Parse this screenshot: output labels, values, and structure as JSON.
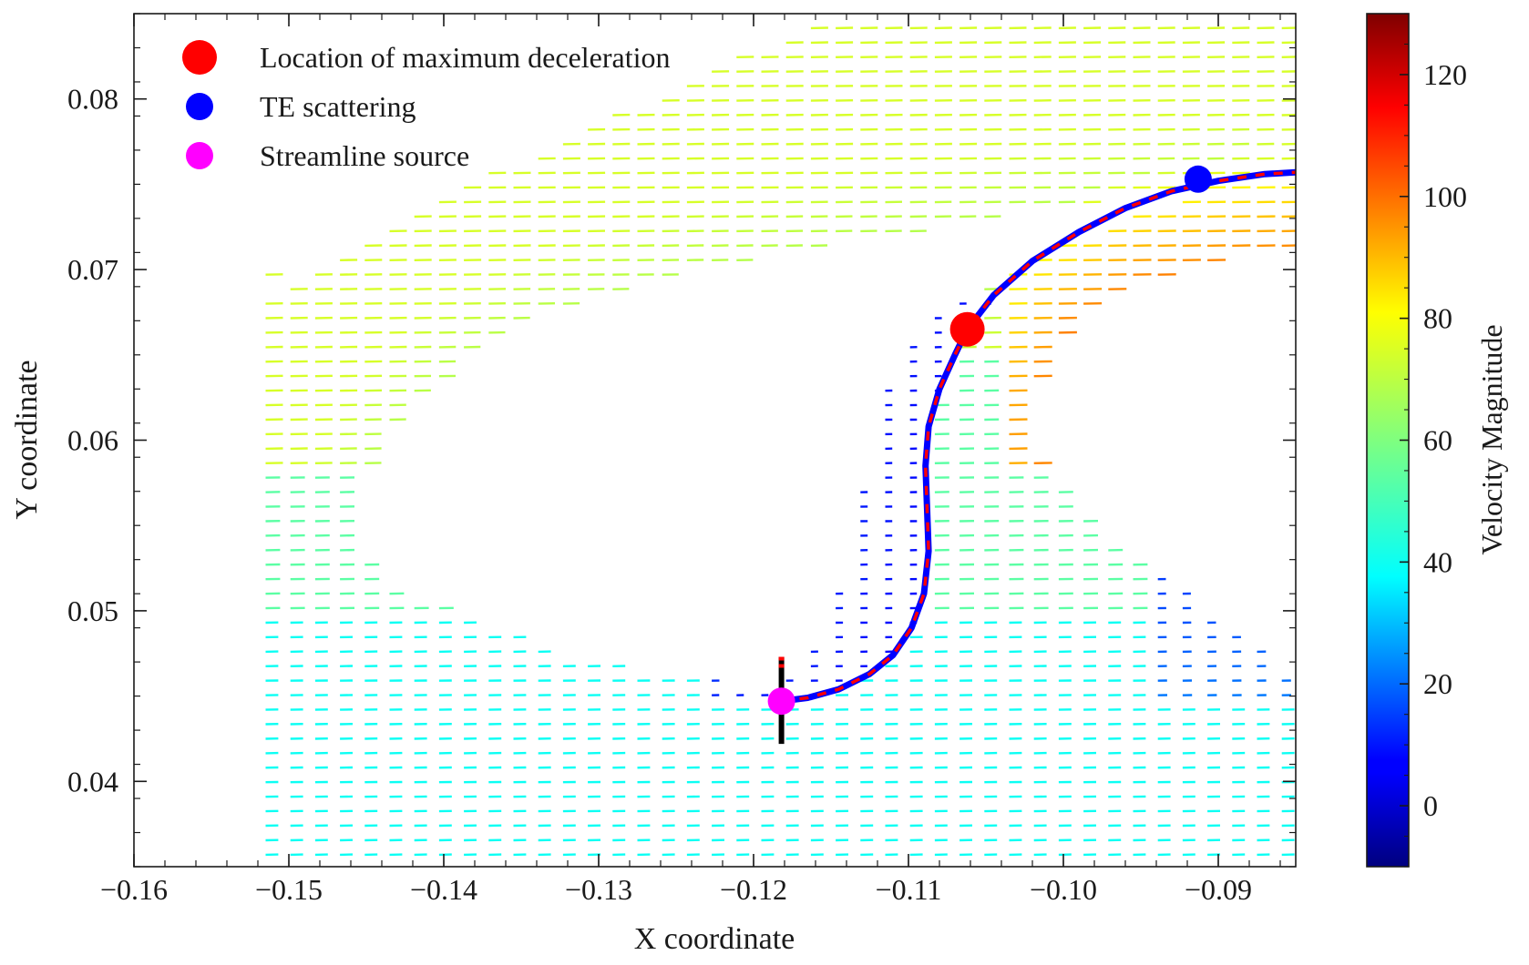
{
  "chart_data": {
    "type": "scatter",
    "plot_kind": "quiver velocity field with streamline",
    "xlabel": "X coordinate",
    "ylabel": "Y coordinate",
    "xlim": [
      -0.16,
      -0.085
    ],
    "ylim": [
      0.035,
      0.085
    ],
    "x_ticks": [
      -0.16,
      -0.15,
      -0.14,
      -0.13,
      -0.12,
      -0.11,
      -0.1,
      -0.09
    ],
    "x_tick_labels": [
      "−0.16",
      "−0.15",
      "−0.14",
      "−0.13",
      "−0.12",
      "−0.11",
      "−0.10",
      "−0.09"
    ],
    "y_ticks": [
      0.04,
      0.05,
      0.06,
      0.07,
      0.08
    ],
    "y_tick_labels": [
      "0.04",
      "0.05",
      "0.06",
      "0.07",
      "0.08"
    ],
    "grid": false,
    "legend_position": "top-left",
    "colorbar": {
      "label": "Velocity Magnitude",
      "colormap": "jet",
      "range": [
        -10,
        130
      ],
      "ticks": [
        0,
        20,
        40,
        60,
        80,
        100,
        120
      ],
      "tick_labels": [
        "0",
        "20",
        "40",
        "60",
        "80",
        "100",
        "120"
      ]
    },
    "series": [
      {
        "name": "Location of maximum deceleration",
        "color": "#ff0000",
        "marker": "circle",
        "points": [
          [
            -0.1062,
            0.0665
          ]
        ]
      },
      {
        "name": "TE scattering",
        "color": "#0000ff",
        "marker": "circle",
        "points": [
          [
            -0.0913,
            0.0753
          ]
        ]
      },
      {
        "name": "Streamline source",
        "color": "#ff00ff",
        "marker": "circle",
        "points": [
          [
            -0.1182,
            0.0447
          ]
        ]
      }
    ],
    "streamline": {
      "colors": [
        "#0000ff",
        "#ff0000"
      ],
      "points": [
        [
          -0.1182,
          0.0447
        ],
        [
          -0.1165,
          0.0449
        ],
        [
          -0.1145,
          0.0454
        ],
        [
          -0.1125,
          0.0463
        ],
        [
          -0.111,
          0.0474
        ],
        [
          -0.1098,
          0.049
        ],
        [
          -0.109,
          0.051
        ],
        [
          -0.1087,
          0.0535
        ],
        [
          -0.1088,
          0.056
        ],
        [
          -0.1089,
          0.0585
        ],
        [
          -0.1087,
          0.0608
        ],
        [
          -0.108,
          0.063
        ],
        [
          -0.107,
          0.065
        ],
        [
          -0.1062,
          0.0665
        ],
        [
          -0.1045,
          0.0685
        ],
        [
          -0.102,
          0.0705
        ],
        [
          -0.099,
          0.0722
        ],
        [
          -0.096,
          0.0736
        ],
        [
          -0.093,
          0.0746
        ],
        [
          -0.09,
          0.0752
        ],
        [
          -0.087,
          0.0756
        ],
        [
          -0.085,
          0.0757
        ]
      ]
    },
    "source_line": {
      "color": "#000000",
      "x": -0.1182,
      "y_range": [
        0.0422,
        0.0473
      ]
    }
  }
}
